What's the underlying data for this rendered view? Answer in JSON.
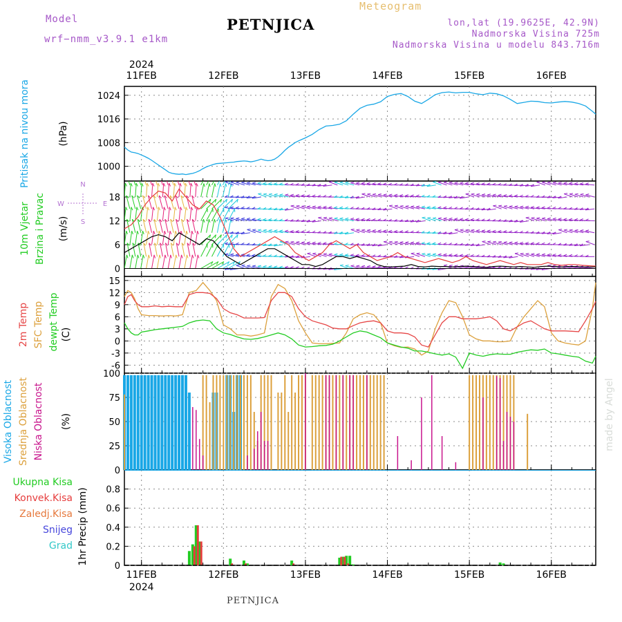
{
  "header": {
    "model_label": "Model",
    "model_name": "wrf−nmm_v3.9.1  e1km",
    "title": "PETNJICA",
    "product": "Meteogram",
    "coords": "lon,lat (19.9625E, 42.9N)",
    "altitude": "Nadmorska Visina 725m",
    "model_altitude": "Nadmorska Visina u modelu 843.716m",
    "footer": "PETNJICA",
    "credit": "made by Angel"
  },
  "colors": {
    "pressure": "#19a7e6",
    "wind_low": "#22cc22",
    "wind_mid": "#e6b43c",
    "wind_high": "#e61e78",
    "wind_cyan": "#19c8dc",
    "wind_blue": "#3c3cdc",
    "wind_purple": "#9622c8",
    "gust": "#e63c3c",
    "wind_speed": "#000000",
    "temp2m": "#e64646",
    "temp_sfc": "#dca03c",
    "dewpoint": "#22cc22",
    "cloud_high": "#19a7e6",
    "cloud_mid": "#dca03c",
    "cloud_low": "#c8148c",
    "precip_total": "#22cc22",
    "precip_conv": "#e63c3c",
    "precip_frozen": "#e6783c",
    "precip_snow": "#4646dc",
    "precip_graupel": "#32c8c8"
  },
  "time_axis": {
    "year": "2024",
    "days": [
      "11FEB",
      "12FEB",
      "13FEB",
      "14FEB",
      "15FEB",
      "16FEB"
    ],
    "start_hour_offset": -5,
    "end_hour_offset": 133
  },
  "chart_data": [
    {
      "type": "line",
      "id": "pressure",
      "title": "",
      "ylabel_1": "Pritisak na nivou mora",
      "ylabel_2": "(hPa)",
      "ylim": [
        995,
        1027
      ],
      "yticks": [
        1000,
        1008,
        1016,
        1024
      ],
      "x": [
        -5,
        -4,
        -3,
        -2,
        -1,
        0,
        1,
        2,
        3,
        4,
        5,
        6,
        7,
        8,
        9,
        10,
        11,
        12,
        13,
        14,
        15,
        16,
        17,
        18,
        19,
        20,
        21,
        22,
        23,
        24,
        25,
        26,
        27,
        28,
        29,
        30,
        31,
        32,
        33,
        34,
        35,
        36,
        37,
        38,
        39,
        40,
        41,
        42,
        43,
        44,
        45,
        46,
        47,
        48,
        50,
        52,
        54,
        56,
        58,
        60,
        62,
        64,
        66,
        68,
        70,
        72,
        74,
        76,
        78,
        80,
        82,
        84,
        86,
        88,
        90,
        92,
        94,
        96,
        98,
        100,
        102,
        104,
        106,
        108,
        110,
        112,
        114,
        116,
        118,
        120,
        122,
        124,
        126,
        128,
        130,
        132,
        133
      ],
      "series": [
        {
          "values": [
            1006.5,
            1005.5,
            1004.8,
            1004.6,
            1004.3,
            1003.8,
            1003.3,
            1002.7,
            1002,
            1001.2,
            1000.4,
            999.6,
            998.8,
            998,
            997.6,
            997.4,
            997.3,
            997.4,
            997.2,
            997.4,
            997.6,
            998,
            998.5,
            999.2,
            999.8,
            1000.2,
            1000.6,
            1000.9,
            1001,
            1001.1,
            1001.2,
            1001.3,
            1001.4,
            1001.6,
            1001.7,
            1001.8,
            1001.7,
            1001.5,
            1001.7,
            1002,
            1002.4,
            1002.1,
            1001.9,
            1002,
            1002.4,
            1003.2,
            1004.2,
            1005.4,
            1006.4,
            1007.2,
            1008,
            1008.6,
            1009.1,
            1009.6,
            1010.8,
            1012.4,
            1013.6,
            1013.8,
            1014.2,
            1015.4,
            1017.6,
            1019.6,
            1020.6,
            1021,
            1021.8,
            1023.6,
            1024.3,
            1024.6,
            1023.6,
            1022,
            1021.2,
            1022.6,
            1024.2,
            1024.9,
            1025.1,
            1024.8,
            1025,
            1025,
            1024.5,
            1024.2,
            1024.7,
            1024.5,
            1023.8,
            1022.6,
            1021.2,
            1021.6,
            1022,
            1021.9,
            1021.5,
            1021.4,
            1021.7,
            1021.9,
            1021.7,
            1021.2,
            1020.4,
            1018.6,
            1017.6
          ]
        }
      ]
    },
    {
      "type": "line",
      "id": "wind",
      "title": "",
      "ylabel_1": "10m Vjetar",
      "ylabel_2": "Brzina i Pravac",
      "ylabel_3": "(m/s)",
      "compass": {
        "n": "N",
        "s": "S",
        "e": "E",
        "w": "W"
      },
      "ylim": [
        -2,
        22
      ],
      "yticks": [
        0,
        6,
        12,
        18
      ],
      "x": [
        -5,
        -3,
        -1,
        1,
        3,
        5,
        7,
        9,
        11,
        13,
        15,
        17,
        19,
        21,
        23,
        25,
        27,
        29,
        31,
        33,
        35,
        37,
        39,
        41,
        43,
        45,
        47,
        49,
        51,
        53,
        55,
        57,
        59,
        61,
        63,
        65,
        67,
        69,
        71,
        73,
        75,
        77,
        79,
        81,
        83,
        85,
        87,
        89,
        91,
        93,
        95,
        97,
        99,
        101,
        103,
        105,
        107,
        109,
        111,
        113,
        115,
        117,
        119,
        121,
        123,
        125,
        127,
        129,
        131,
        133
      ],
      "series": [
        {
          "id": "speed",
          "values": [
            4,
            5,
            6,
            7,
            8,
            8.5,
            8,
            7,
            9,
            8,
            7,
            6,
            7.5,
            7,
            5,
            3,
            2,
            1,
            2,
            3,
            4,
            5,
            5,
            4,
            3,
            2,
            1,
            1,
            0.5,
            1,
            2,
            3,
            3,
            2.5,
            3,
            2.5,
            2,
            1,
            0.5,
            0.4,
            0.5,
            0.6,
            1,
            0.5,
            0.4,
            0.6,
            0.5,
            0.5,
            0.4,
            0.5,
            0.6,
            0.5,
            0.4,
            0.3,
            0.5,
            0.6,
            0.5,
            0.4,
            0.5,
            0.4,
            0.3,
            0.5,
            0.6,
            0.5,
            0.4,
            0.5,
            0.5,
            0.4,
            0.4,
            0.4
          ]
        },
        {
          "id": "gust",
          "values": [
            10,
            11,
            13,
            16,
            18,
            19.5,
            19,
            17,
            20,
            18,
            16,
            15,
            17,
            16,
            13,
            9,
            5,
            3,
            4,
            5,
            6,
            7,
            8,
            7,
            6,
            4,
            3,
            2,
            3,
            4,
            6,
            7,
            6,
            5,
            6,
            4,
            3,
            2,
            2.5,
            3,
            4,
            3,
            2.5,
            2,
            1.5,
            2,
            2.5,
            2,
            1.5,
            2,
            3,
            2,
            1.5,
            1,
            1.5,
            2,
            1.5,
            1,
            1.5,
            1,
            1,
            1,
            1.5,
            1,
            0.8,
            1,
            1,
            0.8,
            0.7,
            0.6
          ]
        }
      ]
    },
    {
      "type": "line",
      "id": "temperature",
      "title": "",
      "ylabel_1": "2m Temp",
      "ylabel_2": "SFC Temp",
      "ylabel_3": "dewpt Temp",
      "ylabel_4": "(C)",
      "ylim": [
        -8,
        16
      ],
      "yticks": [
        -6,
        -3,
        0,
        3,
        6,
        9,
        12,
        15
      ],
      "x": [
        -5,
        -4,
        -3,
        -2,
        -1,
        0,
        2,
        4,
        6,
        8,
        10,
        12,
        14,
        16,
        18,
        20,
        22,
        24,
        26,
        28,
        30,
        32,
        34,
        36,
        38,
        40,
        42,
        44,
        46,
        48,
        50,
        52,
        54,
        56,
        58,
        60,
        62,
        64,
        66,
        68,
        70,
        72,
        74,
        76,
        78,
        80,
        82,
        84,
        86,
        88,
        90,
        92,
        94,
        96,
        98,
        100,
        102,
        104,
        106,
        108,
        110,
        112,
        114,
        116,
        118,
        120,
        122,
        124,
        126,
        128,
        130,
        132,
        133
      ],
      "series": [
        {
          "id": "t2m",
          "values": [
            9,
            11,
            11.5,
            10,
            9,
            8.5,
            8.5,
            8.7,
            8.5,
            8.6,
            8.5,
            8.5,
            11.5,
            12,
            12,
            11.8,
            10.5,
            8,
            7,
            6.5,
            5.7,
            5.7,
            5.7,
            5.8,
            10,
            12,
            12,
            11,
            8,
            6,
            5,
            4.5,
            4,
            3.2,
            3,
            3,
            3.8,
            4.5,
            4.8,
            5,
            4.5,
            2.5,
            2,
            2,
            1.8,
            1,
            -1,
            -1.5,
            1.5,
            4.5,
            6,
            6,
            5.5,
            5.5,
            5.5,
            5.7,
            6,
            5,
            3,
            2.5,
            3.5,
            4.5,
            5,
            4,
            3,
            2.5,
            2.5,
            2.5,
            2.4,
            2.3,
            5,
            8,
            9.8
          ]
        },
        {
          "id": "tsfc",
          "values": [
            11,
            12.5,
            12,
            10.5,
            8,
            6.5,
            6.3,
            6.3,
            6.2,
            6.3,
            6.2,
            6.5,
            12,
            12.5,
            14.5,
            12.5,
            10,
            4,
            3,
            1.5,
            1.5,
            1.2,
            1.5,
            2,
            11,
            14,
            13,
            10,
            5,
            2,
            -0.5,
            -0.7,
            -0.7,
            -0.6,
            -0.5,
            2,
            5.5,
            6.5,
            7,
            6.5,
            4.5,
            -0.5,
            -1.2,
            -1.6,
            -1.5,
            -2,
            -3.5,
            -2.5,
            3,
            7,
            10,
            9.5,
            6,
            1.5,
            0.5,
            0,
            0,
            -0.2,
            -0.2,
            0,
            3.5,
            6,
            8,
            10,
            8.5,
            2,
            0,
            -0.5,
            -0.8,
            -1,
            0,
            8,
            14.5
          ]
        },
        {
          "id": "dewpt",
          "values": [
            4.5,
            3,
            2,
            1.5,
            1.5,
            2.2,
            2.5,
            2.8,
            3,
            3.2,
            3.4,
            3.6,
            4.5,
            5,
            5.2,
            5,
            3,
            2,
            1.6,
            1,
            0.5,
            0.4,
            0.6,
            1,
            1.5,
            2,
            1.5,
            0.5,
            -1,
            -1.5,
            -1.4,
            -1.2,
            -1.1,
            -0.8,
            0,
            1,
            2,
            2.5,
            2.2,
            1.5,
            0.8,
            -0.5,
            -1,
            -1.5,
            -1.8,
            -2.5,
            -2.5,
            -2.8,
            -3.2,
            -3.5,
            -3.2,
            -4,
            -6.8,
            -3,
            -3.5,
            -3.8,
            -3.4,
            -3.2,
            -3.3,
            -3.3,
            -2.8,
            -2.5,
            -2.2,
            -2.3,
            -2,
            -3,
            -3.2,
            -3.5,
            -3.8,
            -4,
            -5,
            -5.5,
            -3.8
          ]
        }
      ]
    },
    {
      "type": "bar",
      "id": "clouds",
      "title": "",
      "ylabel_1": "Visoka Oblacnost",
      "ylabel_2": "Srednja Oblacnost",
      "ylabel_3": "Niska Oblacnost",
      "ylabel_4": "(%)",
      "ylim": [
        0,
        100
      ],
      "yticks": [
        0,
        25,
        50,
        75,
        100
      ],
      "high": {
        "x": [
          -5,
          -4,
          -3,
          -2,
          -1,
          0,
          1,
          2,
          3,
          4,
          5,
          6,
          7,
          8,
          9,
          10,
          11,
          12,
          13,
          14,
          21,
          22,
          25,
          26,
          27,
          28,
          29
        ],
        "values": [
          98,
          98,
          98,
          98,
          98,
          98,
          98,
          98,
          98,
          98,
          98,
          98,
          98,
          98,
          98,
          98,
          98,
          98,
          98,
          80,
          80,
          80,
          98,
          98,
          60,
          98,
          98
        ]
      },
      "mid": {
        "x": [
          -5,
          18,
          19,
          20,
          21,
          22,
          23,
          24,
          25,
          26,
          27,
          28,
          29,
          30,
          31,
          32,
          33,
          34,
          35,
          36,
          37,
          38,
          40,
          41,
          42,
          43,
          44,
          45,
          46,
          47,
          48,
          50,
          51,
          52,
          53,
          54,
          55,
          56,
          57,
          58,
          59,
          60,
          61,
          62,
          63,
          64,
          65,
          66,
          67,
          68,
          69,
          70,
          71,
          96,
          97,
          98,
          99,
          100,
          101,
          102,
          103,
          104,
          105,
          106,
          107,
          108,
          109,
          113
        ],
        "values": [
          78,
          98,
          98,
          70,
          98,
          98,
          98,
          98,
          98,
          98,
          98,
          98,
          98,
          98,
          98,
          98,
          60,
          30,
          98,
          98,
          98,
          98,
          80,
          80,
          98,
          60,
          98,
          80,
          98,
          98,
          98,
          98,
          98,
          98,
          98,
          98,
          98,
          98,
          98,
          98,
          98,
          98,
          98,
          98,
          98,
          98,
          98,
          98,
          98,
          98,
          98,
          98,
          98,
          98,
          98,
          98,
          98,
          98,
          98,
          98,
          98,
          98,
          98,
          98,
          98,
          98,
          98,
          58
        ]
      },
      "low": {
        "x": [
          15,
          16,
          17,
          18,
          31,
          33,
          34,
          35,
          36,
          37,
          48,
          54,
          55,
          57,
          59,
          61,
          62,
          66,
          75,
          79,
          82,
          85,
          88,
          92,
          100,
          104,
          105,
          106,
          107,
          108,
          109
        ],
        "values": [
          65,
          62,
          32,
          15,
          15,
          22,
          40,
          60,
          30,
          30,
          100,
          98,
          98,
          98,
          98,
          98,
          98,
          98,
          35,
          10,
          75,
          98,
          35,
          8,
          75,
          97,
          95,
          30,
          60,
          55,
          50
        ]
      }
    },
    {
      "type": "bar",
      "id": "precip",
      "title": "",
      "ylabel_1": "1hr Precip (mm)",
      "legend": [
        "Ukupna Kisa",
        "Konvek.Kisa",
        "Zaledj.Kisa",
        "Snijeg",
        "Grad"
      ],
      "ylim": [
        0,
        1
      ],
      "yticks": [
        0,
        0.2,
        0.4,
        0.6,
        0.8
      ],
      "total": {
        "x": [
          14,
          15,
          16,
          17,
          26,
          30,
          31,
          44,
          58,
          59,
          60,
          61,
          62,
          105,
          106
        ],
        "values": [
          0.15,
          0.22,
          0.42,
          0.25,
          0.07,
          0.05,
          0.02,
          0.05,
          0.08,
          0.09,
          0.1,
          0.1,
          0.01,
          0.03,
          0.02
        ]
      },
      "conv": {
        "x": [
          15.5,
          16.5,
          17.5,
          26.5,
          30.5,
          44.5,
          58.5,
          59.5,
          60.5
        ],
        "values": [
          0.2,
          0.42,
          0.25,
          0.02,
          0.02,
          0.02,
          0.09,
          0.09,
          0.02
        ]
      }
    }
  ]
}
